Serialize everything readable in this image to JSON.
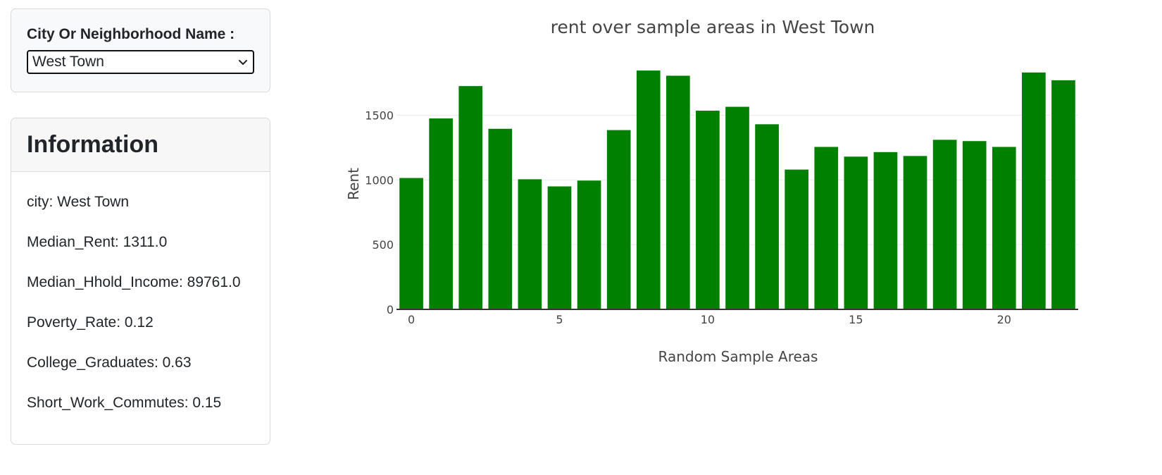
{
  "filter": {
    "label": "City Or Neighborhood Name :",
    "selected": "West Town"
  },
  "info": {
    "title": "Information",
    "lines": [
      "city: West Town",
      "Median_Rent: 1311.0",
      "Median_Hhold_Income: 89761.0",
      "Poverty_Rate: 0.12",
      "College_Graduates: 0.63",
      "Short_Work_Commutes: 0.15"
    ]
  },
  "chart_data": {
    "type": "bar",
    "title": "rent over sample areas in West Town",
    "xlabel": "Random Sample Areas",
    "ylabel": "Rent",
    "x": [
      0,
      1,
      2,
      3,
      4,
      5,
      6,
      7,
      8,
      9,
      10,
      11,
      12,
      13,
      14,
      15,
      16,
      17,
      18,
      19,
      20,
      21,
      22
    ],
    "values": [
      1015,
      1475,
      1725,
      1395,
      1005,
      950,
      995,
      1385,
      1845,
      1805,
      1535,
      1565,
      1430,
      1080,
      1255,
      1180,
      1215,
      1185,
      1310,
      1300,
      1255,
      1830,
      1770
    ],
    "xticks": [
      0,
      5,
      10,
      15,
      20
    ],
    "yticks": [
      0,
      500,
      1000,
      1500
    ],
    "ylim": [
      0,
      1900
    ],
    "bar_color": "#008000",
    "grid": true
  }
}
